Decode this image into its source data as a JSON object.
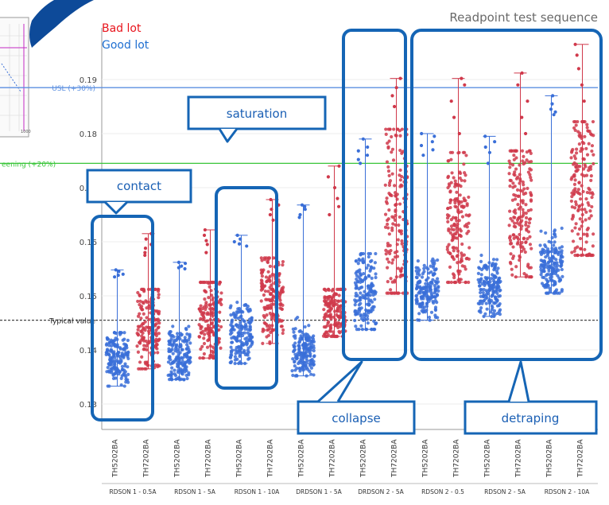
{
  "header": {
    "title": "Readpoint test sequence",
    "legend": [
      {
        "label": "Bad lot",
        "color": "#e8141c"
      },
      {
        "label": "Good lot",
        "color": "#1f6fd1"
      }
    ]
  },
  "colors": {
    "good": "#3a6fd8",
    "bad": "#d0394b",
    "usl_line": "#5b8fe0",
    "screening_line": "#39c539",
    "typical_line": "#444444",
    "callout_border": "#1565b5",
    "callout_fill": "#ffffff",
    "logo_blue": "#0d4a99"
  },
  "reference_lines": {
    "usl": {
      "label": "USL (+30%)",
      "value": 0.1885
    },
    "screening": {
      "label": "eening (+20%)",
      "value": 0.1745
    },
    "typical": {
      "label": "Typical value",
      "value": 0.1455
    }
  },
  "annotations": {
    "contact": "contact",
    "saturation": "saturation",
    "collapse": "collapse",
    "detraping": "detraping"
  },
  "inset_thumbnail": {
    "tick_label": "1000"
  },
  "chart_data": {
    "type": "scatter",
    "title": "Readpoint test sequence",
    "xlabel": "",
    "ylabel": "",
    "ylim": [
      0.125,
      0.198
    ],
    "yticks": [
      0.13,
      0.14,
      0.15,
      0.16,
      0.17,
      0.18,
      0.19
    ],
    "ytick_labels": [
      "0.13",
      "0.14",
      "0.15",
      "0.16",
      "0.17",
      "0.18",
      "0.19"
    ],
    "categories": [
      "TH5202BA",
      "TH7202BA",
      "TH5202BA",
      "TH7202BA",
      "TH5202BA",
      "TH7202BA",
      "TH5202BA",
      "TH7202BA",
      "TH5202BA",
      "TH7202BA",
      "TH5202BA",
      "TH7202BA",
      "TH5202BA",
      "TH7202BA",
      "TH5202BA",
      "TH7202BA"
    ],
    "groups": [
      "RDSON 1 - 0.5A",
      "RDSON 1 - 5A",
      "RDSON 1 - 10A",
      "DRDSON 1 - 5A",
      "DRDSON 2 - 5A",
      "RDSON 2 - 0.5",
      "RDSON 2 - 5A",
      "RDSON 2 - 10A"
    ],
    "grid": true,
    "legend_position": "top-left",
    "series": [
      {
        "name": "Good lot",
        "color": "#3a6fd8",
        "columns": [
          0,
          2,
          4,
          6,
          8,
          10,
          12,
          14
        ],
        "distributions": [
          {
            "min": 0.1333,
            "q1": 0.1365,
            "median": 0.1385,
            "q3": 0.1405,
            "max": 0.1432,
            "outliers": [
              0.1535,
              0.154,
              0.1548,
              0.1545,
              0.1538
            ]
          },
          {
            "min": 0.1345,
            "q1": 0.1375,
            "median": 0.1392,
            "q3": 0.141,
            "max": 0.1445,
            "outliers": [
              0.155,
              0.1555,
              0.156,
              0.1562,
              0.1552
            ]
          },
          {
            "min": 0.1375,
            "q1": 0.1405,
            "median": 0.1425,
            "q3": 0.1448,
            "max": 0.1488,
            "outliers": [
              0.1592,
              0.1596,
              0.16,
              0.1605,
              0.1612
            ]
          },
          {
            "min": 0.1352,
            "q1": 0.138,
            "median": 0.1398,
            "q3": 0.1418,
            "max": 0.1472,
            "outliers": [
              0.1645,
              0.165,
              0.166,
              0.1665,
              0.1668
            ]
          },
          {
            "min": 0.1438,
            "q1": 0.1475,
            "median": 0.1505,
            "q3": 0.1535,
            "max": 0.1578,
            "outliers": [
              0.1745,
              0.1752,
              0.176,
              0.1768,
              0.1775,
              0.179
            ]
          },
          {
            "min": 0.1455,
            "q1": 0.149,
            "median": 0.151,
            "q3": 0.153,
            "max": 0.1568,
            "outliers": [
              0.176,
              0.177,
              0.1778,
              0.1785,
              0.1795,
              0.18
            ]
          },
          {
            "min": 0.1462,
            "q1": 0.1492,
            "median": 0.1512,
            "q3": 0.1532,
            "max": 0.1575,
            "outliers": [
              0.1745,
              0.1765,
              0.1775,
              0.1785,
              0.1795
            ]
          },
          {
            "min": 0.1505,
            "q1": 0.1535,
            "median": 0.1555,
            "q3": 0.1578,
            "max": 0.1625,
            "outliers": [
              0.1835,
              0.184,
              0.1845,
              0.1855,
              0.187
            ]
          }
        ]
      },
      {
        "name": "Bad lot",
        "color": "#d0394b",
        "columns": [
          1,
          3,
          5,
          7,
          9,
          11,
          13,
          15
        ],
        "distributions": [
          {
            "min": 0.1365,
            "q1": 0.1415,
            "median": 0.1445,
            "q3": 0.1475,
            "max": 0.1512,
            "outliers": [
              0.1575,
              0.158,
              0.1588,
              0.1595,
              0.1605,
              0.1615
            ]
          },
          {
            "min": 0.1385,
            "q1": 0.143,
            "median": 0.146,
            "q3": 0.149,
            "max": 0.1525,
            "outliers": [
              0.158,
              0.1595,
              0.1602,
              0.1612,
              0.1622
            ]
          },
          {
            "min": 0.1412,
            "q1": 0.1465,
            "median": 0.1495,
            "q3": 0.1525,
            "max": 0.157,
            "outliers": [
              0.164,
              0.165,
              0.166,
              0.1668,
              0.1678
            ]
          },
          {
            "min": 0.1425,
            "q1": 0.1448,
            "median": 0.1468,
            "q3": 0.1488,
            "max": 0.1512,
            "outliers": [
              0.165,
              0.1665,
              0.168,
              0.17,
              0.172,
              0.174
            ]
          },
          {
            "min": 0.1505,
            "q1": 0.1595,
            "median": 0.166,
            "q3": 0.173,
            "max": 0.1808,
            "outliers": [
              0.185,
              0.187,
              0.1885,
              0.1902
            ]
          },
          {
            "min": 0.1525,
            "q1": 0.1585,
            "median": 0.1635,
            "q3": 0.1695,
            "max": 0.1765,
            "outliers": [
              0.18,
              0.183,
              0.186,
              0.189,
              0.1902
            ]
          },
          {
            "min": 0.1535,
            "q1": 0.16,
            "median": 0.165,
            "q3": 0.171,
            "max": 0.1768,
            "outliers": [
              0.18,
              0.183,
              0.186,
              0.189,
              0.1912
            ]
          },
          {
            "min": 0.1575,
            "q1": 0.164,
            "median": 0.17,
            "q3": 0.1765,
            "max": 0.1822,
            "outliers": [
              0.186,
              0.189,
              0.192,
              0.1945,
              0.1965
            ]
          }
        ]
      }
    ]
  }
}
